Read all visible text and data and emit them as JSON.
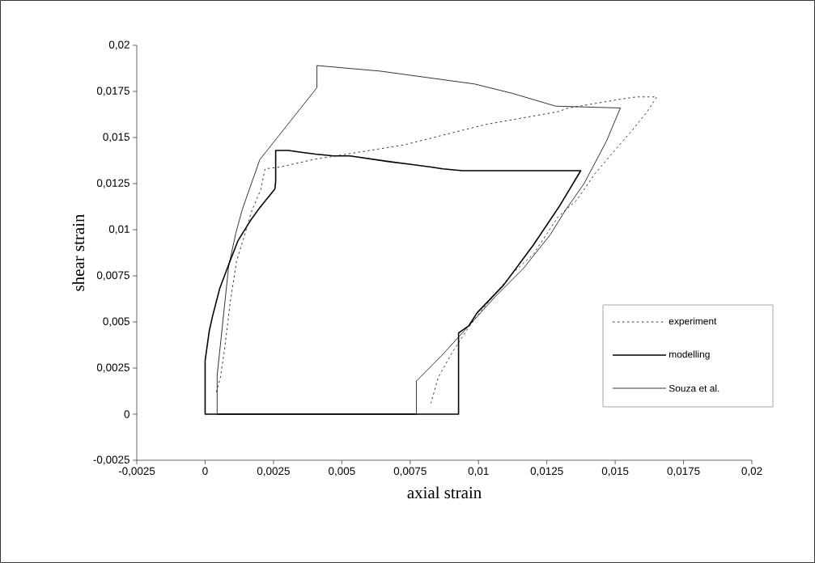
{
  "chart_data": {
    "type": "line",
    "xlabel": "axial strain",
    "ylabel": "shear strain",
    "xlim": [
      -0.0025,
      0.02
    ],
    "ylim": [
      -0.0025,
      0.02
    ],
    "xticks": [
      {
        "value": -0.0025,
        "label": "-0,0025"
      },
      {
        "value": 0,
        "label": "0"
      },
      {
        "value": 0.0025,
        "label": "0,0025"
      },
      {
        "value": 0.005,
        "label": "0,005"
      },
      {
        "value": 0.0075,
        "label": "0,0075"
      },
      {
        "value": 0.01,
        "label": "0,01"
      },
      {
        "value": 0.0125,
        "label": "0,0125"
      },
      {
        "value": 0.015,
        "label": "0,015"
      },
      {
        "value": 0.0175,
        "label": "0,0175"
      },
      {
        "value": 0.02,
        "label": "0,02"
      }
    ],
    "yticks": [
      {
        "value": -0.0025,
        "label": "-0,0025"
      },
      {
        "value": 0,
        "label": "0"
      },
      {
        "value": 0.0025,
        "label": "0,0025"
      },
      {
        "value": 0.005,
        "label": "0,005"
      },
      {
        "value": 0.0075,
        "label": "0,0075"
      },
      {
        "value": 0.01,
        "label": "0,01"
      },
      {
        "value": 0.0125,
        "label": "0,0125"
      },
      {
        "value": 0.015,
        "label": "0,015"
      },
      {
        "value": 0.0175,
        "label": "0,0175"
      },
      {
        "value": 0.02,
        "label": "0,02"
      }
    ],
    "grid": false,
    "legend": "right",
    "marker": "none",
    "series": [
      {
        "name": "experiment",
        "color": "#000000",
        "line_style": "dashed",
        "x": [
          0.00041,
          0.00056,
          0.00071,
          0.00092,
          0.00115,
          0.00142,
          0.0017,
          0.00204,
          0.00219,
          0.00275,
          0.00394,
          0.00728,
          0.01024,
          0.01291,
          0.01329,
          0.01528,
          0.01578,
          0.01652,
          0.01617,
          0.01563,
          0.01498,
          0.01424,
          0.01359,
          0.01291,
          0.01202,
          0.01122,
          0.01004,
          0.00959,
          0.00906,
          0.00853,
          0.00826
        ],
        "values": [
          0.0012,
          0.002,
          0.0035,
          0.0061,
          0.0083,
          0.0096,
          0.011,
          0.0122,
          0.0133,
          0.0134,
          0.0138,
          0.0146,
          0.0157,
          0.0164,
          0.0166,
          0.0171,
          0.0172,
          0.0172,
          0.0164,
          0.0154,
          0.0143,
          0.013,
          0.0116,
          0.0107,
          0.0087,
          0.0076,
          0.0055,
          0.0046,
          0.0034,
          0.002,
          0.0006
        ]
      },
      {
        "name": "modelling",
        "color": "#000000",
        "line_style": "solid",
        "x": [
          0,
          0,
          0.00927,
          0.00927,
          0.00965,
          0.00995,
          0.01092,
          0.01202,
          0.01297,
          0.01374,
          0.00941,
          0.0087,
          0.00826,
          0.00669,
          0.0053,
          0.0047,
          0.00403,
          0.00352,
          0.00305,
          0.00258,
          0.00258,
          0.00255,
          0.002,
          0.00166,
          0.0012,
          0.00086,
          0.00053,
          0.00027,
          0.00015,
          0,
          0
        ],
        "values": [
          0.0029,
          0,
          0,
          0.0044,
          0.0048,
          0.0055,
          0.007,
          0.0092,
          0.0113,
          0.0132,
          0.0132,
          0.0133,
          0.0134,
          0.0137,
          0.014,
          0.014,
          0.0141,
          0.0142,
          0.0143,
          0.0143,
          0.0126,
          0.0122,
          0.0112,
          0.0105,
          0.0094,
          0.0081,
          0.0068,
          0.0053,
          0.0045,
          0.0029,
          0
        ]
      },
      {
        "name": "Souza et al.",
        "color": "#000000",
        "line_style": "solid",
        "x": [
          0.00773,
          0.00044,
          0.00044,
          0.00086,
          0.00112,
          0.00136,
          0.002,
          0.00409,
          0.00409,
          0.0064,
          0.00986,
          0.01122,
          0.01282,
          0.01519,
          0.01468,
          0.01386,
          0.0132,
          0.01261,
          0.01164,
          0.01063,
          0.00965,
          0.00867,
          0.00773,
          0.00773,
          0.00044
        ],
        "values": [
          0,
          0,
          0.0021,
          0.008,
          0.0098,
          0.0111,
          0.0138,
          0.0177,
          0.0189,
          0.0186,
          0.0179,
          0.0174,
          0.0167,
          0.0166,
          0.0148,
          0.0125,
          0.0111,
          0.0097,
          0.0079,
          0.0064,
          0.0048,
          0.0032,
          0.0018,
          0,
          0
        ]
      }
    ]
  }
}
